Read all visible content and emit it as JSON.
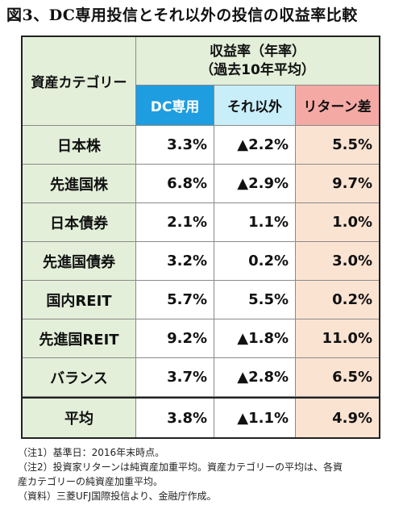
{
  "figure_title": "図3、DC専用投信とそれ以外の投信の収益率比較",
  "table": {
    "category_header": "資産カテゴリー",
    "main_header_line1": "収益率（年率）",
    "main_header_line2": "（過去10年平均）",
    "col_dc": "DC専用",
    "col_other": "それ以外",
    "col_diff": "リターン差",
    "rows": [
      {
        "label": "日本株",
        "dc": "3.3%",
        "other": "▲2.2%",
        "diff": "5.5%"
      },
      {
        "label": "先進国株",
        "dc": "6.8%",
        "other": "▲2.9%",
        "diff": "9.7%"
      },
      {
        "label": "日本債券",
        "dc": "2.1%",
        "other": "1.1%",
        "diff": "1.0%"
      },
      {
        "label": "先進国債券",
        "dc": "3.2%",
        "other": "0.2%",
        "diff": "3.0%"
      },
      {
        "label": "国内REIT",
        "dc": "5.7%",
        "other": "5.5%",
        "diff": "0.2%"
      },
      {
        "label": "先進国REIT",
        "dc": "9.2%",
        "other": "▲1.8%",
        "diff": "11.0%"
      },
      {
        "label": "バランス",
        "dc": "3.7%",
        "other": "▲2.8%",
        "diff": "6.5%"
      }
    ],
    "average": {
      "label": "平均",
      "dc": "3.8%",
      "other": "▲1.1%",
      "diff": "4.9%"
    }
  },
  "notes": {
    "note1": "（注1）基準日：2016年末時点。",
    "note2a": "（注2）投資家リターンは純資産加重平均。資産カテゴリーの平均は、各資",
    "note2b": "産カテゴリーの純資産加重平均。",
    "source": "（資料）三菱UFJ国際投信より、金融庁作成。"
  },
  "colors": {
    "header_green": "#e3efd9",
    "dc_blue": "#1e9de0",
    "other_lightblue": "#c8eefa",
    "diff_pink": "#f5a9a5",
    "diff_cell": "#fbe3d2"
  }
}
